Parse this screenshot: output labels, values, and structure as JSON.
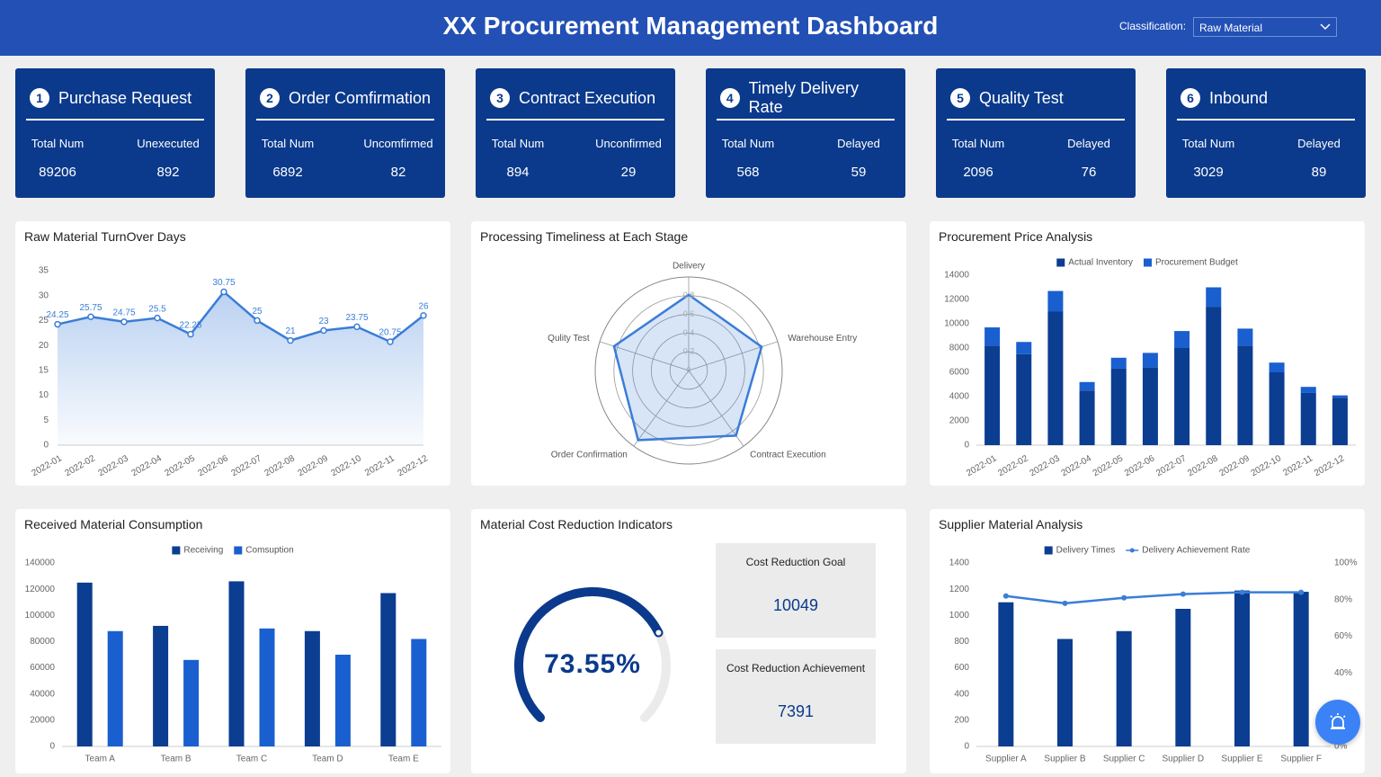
{
  "header": {
    "title": "XX Procurement Management Dashboard",
    "filter_label": "Classification:",
    "filter_value": "Raw Material"
  },
  "kpis": [
    {
      "number": 1,
      "title": "Purchase Request",
      "left_label": "Total Num",
      "left_value": 89206,
      "right_label": "Unexecuted",
      "right_value": 892
    },
    {
      "number": 2,
      "title": "Order Comfirmation",
      "left_label": "Total Num",
      "left_value": 6892,
      "right_label": "Uncomfirmed",
      "right_value": 82
    },
    {
      "number": 3,
      "title": "Contract Execution",
      "left_label": "Total Num",
      "left_value": 894,
      "right_label": "Unconfirmed",
      "right_value": 29
    },
    {
      "number": 4,
      "title": "Timely Delivery Rate",
      "left_label": "Total Num",
      "left_value": 568,
      "right_label": "Delayed",
      "right_value": 59
    },
    {
      "number": 5,
      "title": "Quality Test",
      "left_label": "Total Num",
      "left_value": 2096,
      "right_label": "Delayed",
      "right_value": 76
    },
    {
      "number": 6,
      "title": "Inbound",
      "left_label": "Total Num",
      "left_value": 3029,
      "right_label": "Delayed",
      "right_value": 89
    }
  ],
  "chart_data": [
    {
      "type": "line",
      "title": "Raw Material TurnOver Days",
      "categories": [
        "2022-01",
        "2022-02",
        "2022-03",
        "2022-04",
        "2022-05",
        "2022-06",
        "2022-07",
        "2022-08",
        "2022-09",
        "2022-10",
        "2022-11",
        "2022-12"
      ],
      "values": [
        24.25,
        25.75,
        24.75,
        25.5,
        22.25,
        30.75,
        25,
        21,
        23,
        23.75,
        20.75,
        26
      ],
      "color": "#3b7dd8",
      "area": true,
      "ylim": [
        0,
        35
      ],
      "yticks": [
        0,
        5,
        10,
        15,
        20,
        25,
        30,
        35
      ],
      "grid": false
    },
    {
      "type": "radar",
      "title": "Processing Timeliness at Each Stage",
      "indicators": [
        "Delivery",
        "Warehouse Entry",
        "Contract Execution",
        "Order Confirmation",
        "Qulity Test"
      ],
      "values": [
        0.81,
        0.82,
        0.86,
        0.92,
        0.84
      ],
      "color": "#3b7dd8",
      "rlim": [
        0,
        1
      ],
      "rticks": [
        0,
        0.2,
        0.4,
        0.6,
        0.8
      ]
    },
    {
      "type": "bar",
      "title": "Procurement Price Analysis",
      "stacked": true,
      "categories": [
        "2022-01",
        "2022-02",
        "2022-03",
        "2022-04",
        "2022-05",
        "2022-06",
        "2022-07",
        "2022-08",
        "2022-09",
        "2022-10",
        "2022-11",
        "2022-12"
      ],
      "series": [
        {
          "name": "Actual Inventory",
          "color": "#0b3d91",
          "values": [
            8200,
            7500,
            11000,
            4500,
            6300,
            6400,
            8000,
            11400,
            8200,
            6000,
            4300,
            3900
          ]
        },
        {
          "name": "Procurement Budget",
          "color": "#1a5fd0",
          "values": [
            1500,
            1000,
            1700,
            700,
            900,
            1200,
            1400,
            1600,
            1400,
            800,
            500,
            200
          ]
        }
      ],
      "ylim": [
        0,
        14000
      ],
      "yticks": [
        0,
        2000,
        4000,
        6000,
        8000,
        10000,
        12000,
        14000
      ],
      "grid": false
    },
    {
      "type": "bar",
      "title": "Received Material Consumption",
      "stacked": false,
      "categories": [
        "Team A",
        "Team B",
        "Team C",
        "Team D",
        "Team E"
      ],
      "series": [
        {
          "name": "Receiving",
          "color": "#0b3d91",
          "values": [
            125000,
            92000,
            126000,
            88000,
            117000
          ]
        },
        {
          "name": "Comsuption",
          "color": "#1a5fd0",
          "values": [
            88000,
            66000,
            90000,
            70000,
            82000
          ]
        }
      ],
      "ylim": [
        0,
        140000
      ],
      "yticks": [
        0,
        20000,
        40000,
        60000,
        80000,
        100000,
        120000,
        140000
      ],
      "grid": false
    },
    {
      "type": "gauge",
      "title": "Material Cost Reduction Indicators",
      "value": 73.55,
      "value_label": "73.55%",
      "ylim": [
        0,
        100
      ],
      "color": "#0b3a8c",
      "cards": [
        {
          "label": "Cost Reduction Goal",
          "value": 10049
        },
        {
          "label": "Cost Reduction Achievement",
          "value": 7391
        }
      ]
    },
    {
      "type": "bar",
      "title": "Supplier Material Analysis",
      "stacked": false,
      "categories": [
        "Supplier A",
        "Supplier B",
        "Supplier C",
        "Supplier D",
        "Supplier E",
        "Supplier F"
      ],
      "series": [
        {
          "name": "Delivery Times",
          "color": "#0b3d91",
          "values": [
            1100,
            820,
            880,
            1050,
            1190,
            1180
          ]
        },
        {
          "name": "Delivery Achievement Rate",
          "color": "#3b7dd8",
          "type": "line",
          "axis": "y2",
          "values": [
            82,
            78,
            81,
            83,
            84,
            84
          ]
        }
      ],
      "ylim": [
        0,
        1400
      ],
      "yticks": [
        0,
        200,
        400,
        600,
        800,
        1000,
        1200,
        1400
      ],
      "y2lim": [
        0,
        100
      ],
      "y2ticks": [
        {
          "value": 0,
          "label": "0%"
        },
        {
          "value": 20,
          "label": "20%"
        },
        {
          "value": 40,
          "label": "40%"
        },
        {
          "value": 60,
          "label": "60%"
        },
        {
          "value": 80,
          "label": "80%"
        },
        {
          "value": 100,
          "label": "100%"
        }
      ],
      "grid": false
    }
  ]
}
